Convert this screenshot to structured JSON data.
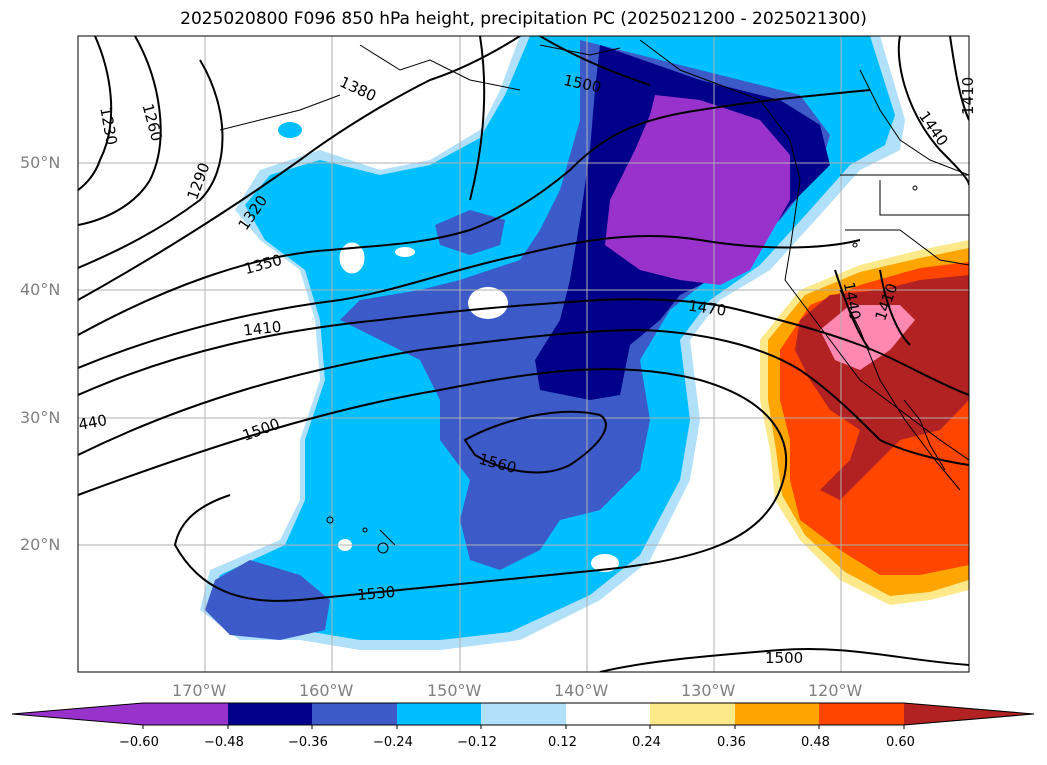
{
  "title": "2025020800 F096 850 hPa height, precipitation PC (2025021200 - 2025021300)",
  "colors": {
    "neg_060": "#9932cc",
    "neg_048": "#00008b",
    "neg_036": "#3c5ac8",
    "neg_024": "#00bfff",
    "neg_012": "#b0e0fa",
    "zero": "#ffffff",
    "pos_012": "#fee98a",
    "pos_024": "#ffa500",
    "pos_036": "#ff4500",
    "pos_048": "#b22222",
    "pos_060": "#ff88b0",
    "contour": "#000000",
    "grid": "#b0b0b0"
  },
  "axes": {
    "lon_ticks": [
      "170°W",
      "160°W",
      "150°W",
      "140°W",
      "130°W",
      "120°W"
    ],
    "lat_ticks": [
      "50°N",
      "40°N",
      "30°N",
      "20°N"
    ],
    "lon_range": [
      -180,
      -110
    ],
    "lat_range": [
      10,
      60
    ]
  },
  "colorbar": {
    "ticks": [
      "−0.60",
      "−0.48",
      "−0.36",
      "−0.24",
      "−0.12",
      "0.12",
      "0.24",
      "0.36",
      "0.48",
      "0.60"
    ],
    "extend": "both"
  },
  "contour_labels": [
    "1230",
    "1260",
    "1290",
    "1320",
    "1350",
    "1380",
    "1410",
    "440",
    "1500",
    "1470",
    "1560",
    "1530",
    "1500",
    "1500",
    "1440",
    "1410",
    "1440",
    "1410"
  ]
}
